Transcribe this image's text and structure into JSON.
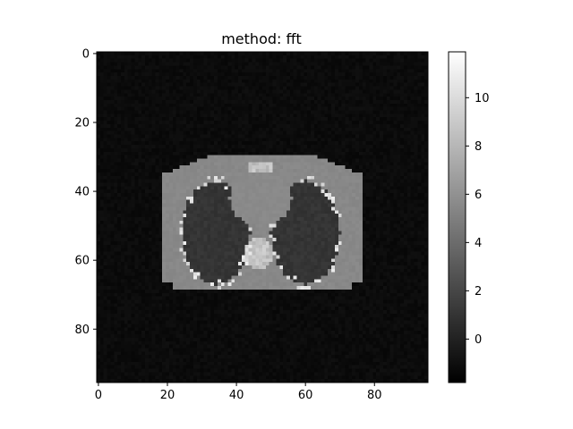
{
  "chart_data": {
    "type": "heatmap",
    "title": "method: fft",
    "xlabel": "",
    "ylabel": "",
    "colormap": "gray",
    "image_size": [
      96,
      96
    ],
    "xlim": [
      -0.5,
      95.5
    ],
    "ylim": [
      95.5,
      -0.5
    ],
    "x_ticks": [
      0,
      20,
      40,
      60,
      80
    ],
    "y_ticks": [
      0,
      20,
      40,
      60,
      80
    ],
    "colorbar": {
      "range": [
        -1.8,
        11.9
      ],
      "ticks": [
        0,
        2,
        4,
        6,
        8,
        10
      ]
    },
    "description_values": {
      "background_level": -1.2,
      "body_level": 5.5,
      "lung_level": 1.0,
      "heart_level": 5.6,
      "bone_level": 9.5
    }
  }
}
